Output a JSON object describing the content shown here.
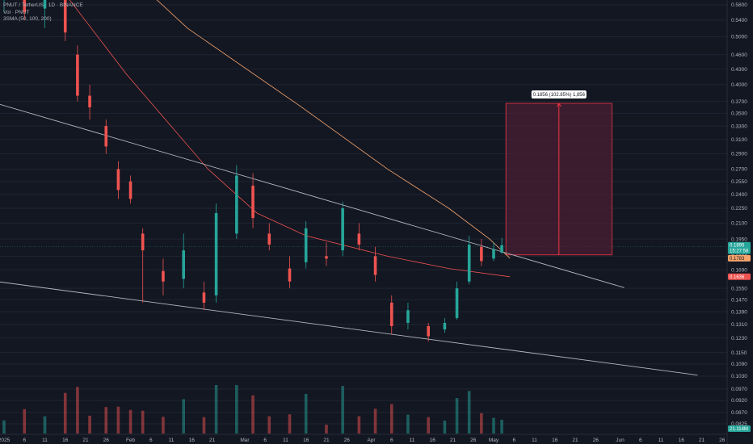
{
  "legend": {
    "symbol_line": "PNUT / TetherUS · 1D · BINANCE",
    "volume_line": "Vol · PNUT",
    "sma_line": "3SMA (50, 100, 200)"
  },
  "measure_label": "0.1856 (102.85%) 1,856",
  "price_tags": {
    "last_price": "0.1895",
    "countdown": "15:27:58",
    "sma_a": "0.1783",
    "sma_b": "0.1636",
    "volume": "21.114M"
  },
  "colors": {
    "background": "#131722",
    "up": "#26a69a",
    "down": "#ef5350",
    "sma_fast": "#ef5350",
    "sma_slow": "#f7a46b",
    "trendline": "#b2b5be",
    "measure_fill": "#4a1f33",
    "measure_line": "#f23645"
  },
  "chart_data": {
    "type": "candlestick",
    "y_axis_scale": "log",
    "y_ticks": [
      "0.5800",
      "0.5400",
      "0.5000",
      "0.4600",
      "0.4300",
      "0.4000",
      "0.3700",
      "0.3500",
      "0.3300",
      "0.3100",
      "0.2900",
      "0.2700",
      "0.2550",
      "0.2400",
      "0.2250",
      "0.2100",
      "0.1950",
      "0.1800",
      "0.1690",
      "0.1550",
      "0.1470",
      "0.1390",
      "0.1310",
      "0.1230",
      "0.1150",
      "0.1090",
      "0.1030",
      "0.0970",
      "0.0920",
      "0.0870",
      "0.0825"
    ],
    "x_ticks": [
      "2025",
      "6",
      "11",
      "16",
      "21",
      "26",
      "Feb",
      "6",
      "11",
      "16",
      "21",
      "Mar",
      "6",
      "11",
      "16",
      "21",
      "26",
      "Apr",
      "6",
      "11",
      "16",
      "21",
      "26",
      "May",
      "6",
      "11",
      "16",
      "21",
      "26",
      "Jun",
      "6",
      "11",
      "16",
      "21",
      "26",
      "Jul"
    ],
    "candles_approx": [
      {
        "date": "2025-01-01",
        "o": 0.62,
        "h": 0.66,
        "l": 0.56,
        "c": 0.64
      },
      {
        "date": "2025-01-06",
        "o": 0.61,
        "h": 0.65,
        "l": 0.54,
        "c": 0.56
      },
      {
        "date": "2025-01-11",
        "o": 0.57,
        "h": 0.64,
        "l": 0.52,
        "c": 0.6
      },
      {
        "date": "2025-01-16",
        "o": 0.6,
        "h": 0.62,
        "l": 0.49,
        "c": 0.51
      },
      {
        "date": "2025-01-19",
        "o": 0.46,
        "h": 0.48,
        "l": 0.37,
        "c": 0.38
      },
      {
        "date": "2025-01-22",
        "o": 0.38,
        "h": 0.4,
        "l": 0.34,
        "c": 0.36
      },
      {
        "date": "2025-01-26",
        "o": 0.33,
        "h": 0.34,
        "l": 0.29,
        "c": 0.3
      },
      {
        "date": "2025-01-29",
        "o": 0.27,
        "h": 0.28,
        "l": 0.235,
        "c": 0.245
      },
      {
        "date": "2025-02-01",
        "o": 0.255,
        "h": 0.262,
        "l": 0.23,
        "c": 0.235
      },
      {
        "date": "2025-02-04",
        "o": 0.2,
        "h": 0.205,
        "l": 0.145,
        "c": 0.185
      },
      {
        "date": "2025-02-09",
        "o": 0.168,
        "h": 0.178,
        "l": 0.15,
        "c": 0.16
      },
      {
        "date": "2025-02-14",
        "o": 0.162,
        "h": 0.2,
        "l": 0.155,
        "c": 0.185
      },
      {
        "date": "2025-02-19",
        "o": 0.152,
        "h": 0.16,
        "l": 0.14,
        "c": 0.145
      },
      {
        "date": "2025-02-22",
        "o": 0.15,
        "h": 0.23,
        "l": 0.145,
        "c": 0.22
      },
      {
        "date": "2025-02-27",
        "o": 0.2,
        "h": 0.275,
        "l": 0.195,
        "c": 0.262
      },
      {
        "date": "2025-03-03",
        "o": 0.25,
        "h": 0.265,
        "l": 0.205,
        "c": 0.215
      },
      {
        "date": "2025-03-07",
        "o": 0.2,
        "h": 0.21,
        "l": 0.185,
        "c": 0.19
      },
      {
        "date": "2025-03-12",
        "o": 0.17,
        "h": 0.18,
        "l": 0.155,
        "c": 0.16
      },
      {
        "date": "2025-03-16",
        "o": 0.175,
        "h": 0.212,
        "l": 0.17,
        "c": 0.205
      },
      {
        "date": "2025-03-21",
        "o": 0.18,
        "h": 0.192,
        "l": 0.172,
        "c": 0.178
      },
      {
        "date": "2025-03-25",
        "o": 0.185,
        "h": 0.232,
        "l": 0.18,
        "c": 0.225
      },
      {
        "date": "2025-03-29",
        "o": 0.2,
        "h": 0.21,
        "l": 0.185,
        "c": 0.19
      },
      {
        "date": "2025-04-02",
        "o": 0.18,
        "h": 0.188,
        "l": 0.16,
        "c": 0.165
      },
      {
        "date": "2025-04-06",
        "o": 0.145,
        "h": 0.15,
        "l": 0.125,
        "c": 0.13
      },
      {
        "date": "2025-04-10",
        "o": 0.132,
        "h": 0.145,
        "l": 0.128,
        "c": 0.14
      },
      {
        "date": "2025-04-15",
        "o": 0.13,
        "h": 0.132,
        "l": 0.121,
        "c": 0.124
      },
      {
        "date": "2025-04-19",
        "o": 0.128,
        "h": 0.135,
        "l": 0.126,
        "c": 0.132
      },
      {
        "date": "2025-04-22",
        "o": 0.135,
        "h": 0.16,
        "l": 0.134,
        "c": 0.155
      },
      {
        "date": "2025-04-25",
        "o": 0.16,
        "h": 0.198,
        "l": 0.158,
        "c": 0.19
      },
      {
        "date": "2025-04-28",
        "o": 0.188,
        "h": 0.195,
        "l": 0.172,
        "c": 0.176
      },
      {
        "date": "2025-05-01",
        "o": 0.178,
        "h": 0.192,
        "l": 0.176,
        "c": 0.186
      },
      {
        "date": "2025-05-03",
        "o": 0.183,
        "h": 0.196,
        "l": 0.182,
        "c": 0.1895
      }
    ],
    "sma_fast_approx": [
      {
        "date": "2025-01-11",
        "v": 0.69
      },
      {
        "date": "2025-01-31",
        "v": 0.42
      },
      {
        "date": "2025-02-20",
        "v": 0.27
      },
      {
        "date": "2025-03-04",
        "v": 0.22
      },
      {
        "date": "2025-03-16",
        "v": 0.198
      },
      {
        "date": "2025-04-05",
        "v": 0.18
      },
      {
        "date": "2025-04-20",
        "v": 0.17
      },
      {
        "date": "2025-05-05",
        "v": 0.1636
      }
    ],
    "sma_slow_approx": [
      {
        "date": "2025-01-18",
        "v": 0.85
      },
      {
        "date": "2025-02-15",
        "v": 0.52
      },
      {
        "date": "2025-03-15",
        "v": 0.36
      },
      {
        "date": "2025-04-05",
        "v": 0.27
      },
      {
        "date": "2025-04-20",
        "v": 0.225
      },
      {
        "date": "2025-04-30",
        "v": 0.195
      },
      {
        "date": "2025-05-05",
        "v": 0.1783
      }
    ],
    "trendlines": [
      {
        "from": {
          "date": "2024-12-31",
          "v": 0.365
        },
        "to": {
          "date": "2025-06-02",
          "v": 0.1555
        }
      },
      {
        "from": {
          "date": "2024-12-29",
          "v": 0.1605
        },
        "to": {
          "date": "2025-06-20",
          "v": 0.1035
        }
      }
    ],
    "measure": {
      "from_date": "2025-05-04",
      "to_date": "2025-05-30",
      "low": 0.1811,
      "high": 0.3667,
      "label": "0.1856 (102.85%) 1,856"
    },
    "volume_units": "relative"
  }
}
